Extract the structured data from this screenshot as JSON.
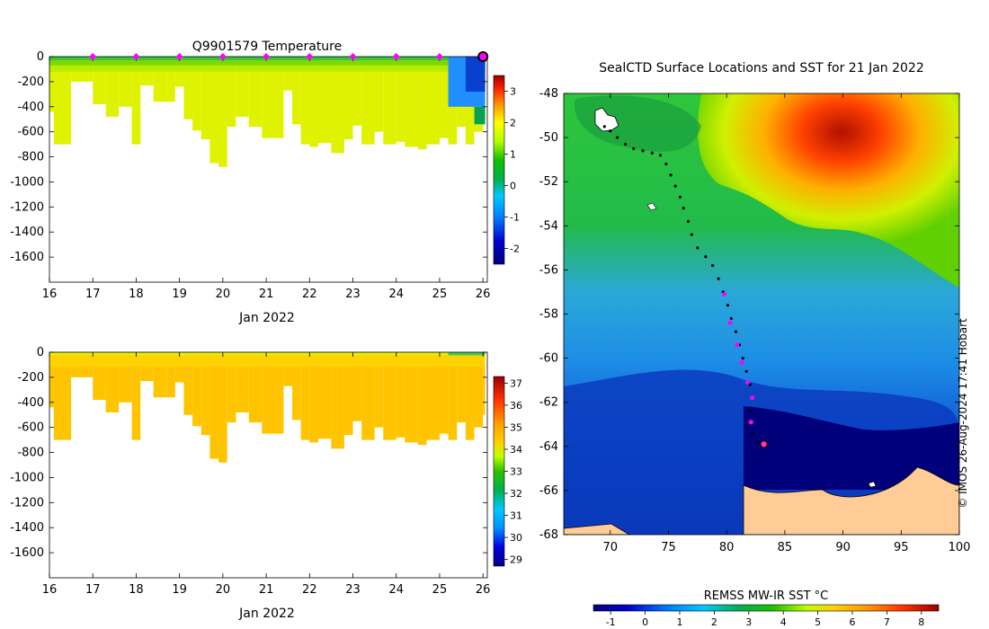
{
  "chart_data": [
    {
      "type": "heatmap",
      "title": "Q9901579  Temperature",
      "xlabel": "Jan 2022",
      "ylabel": "",
      "x_ticks": [
        16,
        17,
        18,
        19,
        20,
        21,
        22,
        23,
        24,
        25,
        26
      ],
      "y_ticks": [
        0,
        -200,
        -400,
        -600,
        -800,
        -1000,
        -1200,
        -1400,
        -1600
      ],
      "xlim": [
        16,
        26.1
      ],
      "ylim": [
        -1800,
        0
      ],
      "colorbar": {
        "ticks": [
          3,
          2,
          1,
          0,
          -1,
          -2
        ],
        "range": [
          -2.5,
          3.5
        ]
      },
      "profile_markers_x": [
        17,
        18,
        19,
        20,
        21,
        22,
        23,
        24,
        25
      ],
      "last_profile_x": 26,
      "profiles": [
        [
          16.0,
          -440
        ],
        [
          16.1,
          -700
        ],
        [
          16.5,
          -200
        ],
        [
          16.9,
          -200
        ],
        [
          17.0,
          -380
        ],
        [
          17.3,
          -480
        ],
        [
          17.6,
          -400
        ],
        [
          17.9,
          -700
        ],
        [
          18.1,
          -230
        ],
        [
          18.4,
          -360
        ],
        [
          18.7,
          -360
        ],
        [
          18.9,
          -240
        ],
        [
          19.1,
          -500
        ],
        [
          19.3,
          -590
        ],
        [
          19.5,
          -660
        ],
        [
          19.7,
          -850
        ],
        [
          19.9,
          -880
        ],
        [
          20.1,
          -560
        ],
        [
          20.3,
          -480
        ],
        [
          20.6,
          -560
        ],
        [
          20.9,
          -650
        ],
        [
          21.1,
          -650
        ],
        [
          21.4,
          -270
        ],
        [
          21.6,
          -540
        ],
        [
          21.8,
          -700
        ],
        [
          22.0,
          -720
        ],
        [
          22.2,
          -690
        ],
        [
          22.5,
          -770
        ],
        [
          22.8,
          -660
        ],
        [
          23.0,
          -550
        ],
        [
          23.2,
          -700
        ],
        [
          23.5,
          -600
        ],
        [
          23.7,
          -700
        ],
        [
          24.0,
          -680
        ],
        [
          24.2,
          -720
        ],
        [
          24.5,
          -740
        ],
        [
          24.7,
          -700
        ],
        [
          25.0,
          -650
        ],
        [
          25.2,
          -700
        ],
        [
          25.4,
          -560
        ],
        [
          25.6,
          -700
        ],
        [
          25.8,
          -600
        ],
        [
          26.0,
          -500
        ]
      ]
    },
    {
      "type": "heatmap",
      "title": "",
      "xlabel": "Jan 2022",
      "x_ticks": [
        16,
        17,
        18,
        19,
        20,
        21,
        22,
        23,
        24,
        25,
        26
      ],
      "y_ticks": [
        0,
        -200,
        -400,
        -600,
        -800,
        -1000,
        -1200,
        -1400,
        -1600
      ],
      "xlim": [
        16,
        26.1
      ],
      "ylim": [
        -1800,
        0
      ],
      "colorbar": {
        "ticks": [
          37,
          36,
          35,
          34,
          33,
          32,
          31,
          30,
          29
        ],
        "range": [
          28.7,
          37.3
        ]
      }
    },
    {
      "type": "heatmap",
      "title": "SealCTD Surface Locations and SST for 21 Jan 2022",
      "xlabel": "",
      "ylabel": "",
      "x_ticks": [
        70,
        75,
        80,
        85,
        90,
        95,
        100
      ],
      "y_ticks": [
        -48,
        -50,
        -52,
        -54,
        -56,
        -58,
        -60,
        -62,
        -64,
        -66,
        -68
      ],
      "xlim": [
        66,
        100
      ],
      "ylim": [
        -68,
        -48
      ],
      "colorbar": {
        "label": "REMSS MW-IR SST °C",
        "ticks": [
          -1,
          0,
          1,
          2,
          3,
          4,
          5,
          6,
          7,
          8
        ],
        "range": [
          -1.5,
          8.5
        ]
      },
      "track_lon_lat": [
        [
          69.5,
          -49.5
        ],
        [
          70.0,
          -49.7
        ],
        [
          70.6,
          -50.0
        ],
        [
          71.3,
          -50.3
        ],
        [
          72.0,
          -50.5
        ],
        [
          72.8,
          -50.6
        ],
        [
          73.6,
          -50.7
        ],
        [
          74.3,
          -50.8
        ],
        [
          74.8,
          -51.2
        ],
        [
          75.2,
          -51.7
        ],
        [
          75.6,
          -52.2
        ],
        [
          76.0,
          -52.7
        ],
        [
          76.3,
          -53.2
        ],
        [
          76.7,
          -53.8
        ],
        [
          77.0,
          -54.4
        ],
        [
          77.5,
          -55.0
        ],
        [
          78.2,
          -55.4
        ],
        [
          78.8,
          -55.8
        ],
        [
          79.3,
          -56.4
        ],
        [
          79.7,
          -57.0
        ],
        [
          80.1,
          -57.6
        ],
        [
          80.4,
          -58.2
        ],
        [
          80.8,
          -58.8
        ],
        [
          81.1,
          -59.4
        ],
        [
          81.4,
          -60.0
        ],
        [
          81.7,
          -60.6
        ],
        [
          82.0,
          -61.2
        ],
        [
          82.2,
          -61.8
        ],
        [
          82.1,
          -62.4
        ],
        [
          81.9,
          -63.0
        ],
        [
          82.2,
          -63.4
        ],
        [
          82.7,
          -63.8
        ]
      ],
      "daily_positions_lon_lat": [
        [
          79.8,
          -57.1
        ],
        [
          80.3,
          -58.4
        ],
        [
          80.9,
          -59.4
        ],
        [
          81.3,
          -60.2
        ],
        [
          81.8,
          -61.1
        ],
        [
          82.2,
          -61.8
        ],
        [
          82.1,
          -62.9
        ]
      ],
      "current_position_lon_lat": [
        83.2,
        -63.9
      ]
    }
  ],
  "credit": "© IMOS 26-Aug-2024 17:41 Hobart"
}
